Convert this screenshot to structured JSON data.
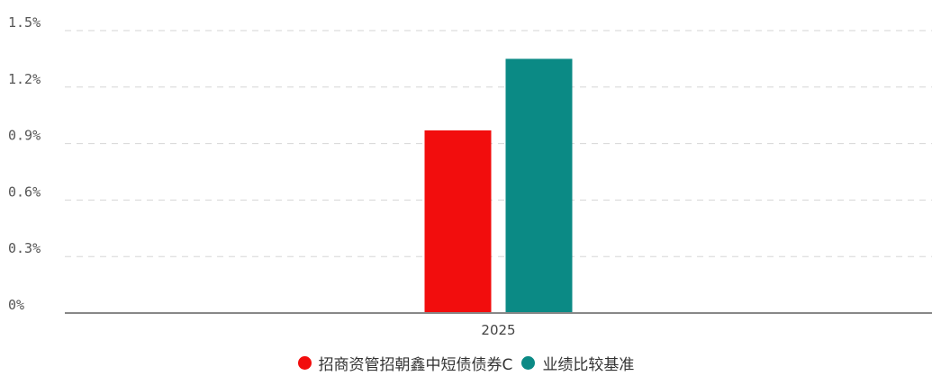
{
  "chart_data": {
    "type": "bar",
    "categories": [
      "2025"
    ],
    "series": [
      {
        "name": "招商资管招朝鑫中短债债券C",
        "color": "#f20d0d",
        "values": [
          0.97
        ]
      },
      {
        "name": "业绩比较基准",
        "color": "#0b8a85",
        "values": [
          1.35
        ]
      }
    ],
    "yticks": [
      "0%",
      "0.3%",
      "0.6%",
      "0.9%",
      "1.2%",
      "1.5%"
    ],
    "ylim": [
      0,
      1.5
    ],
    "y_unit": "%",
    "grid": true,
    "grid_style": "dashed",
    "legend_position": "bottom",
    "title": "",
    "xlabel": "",
    "ylabel": ""
  }
}
